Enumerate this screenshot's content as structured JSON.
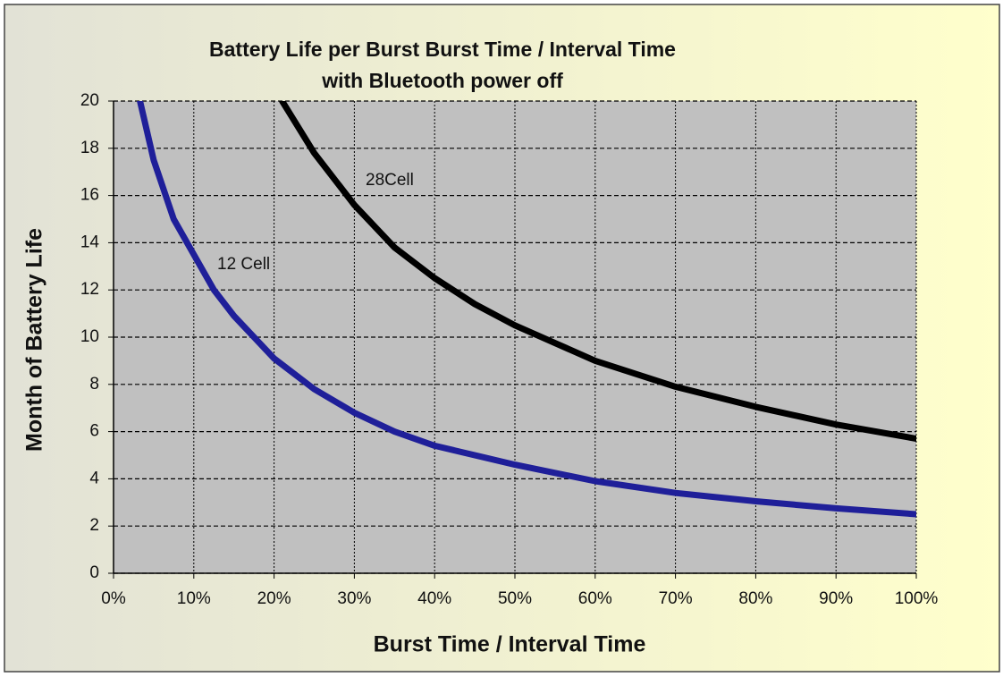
{
  "chart_data": {
    "type": "line",
    "title": "Battery Life per Burst Burst Time / Interval Time",
    "subtitle": "with Bluetooth  power off",
    "x_label": "Burst Time / Interval  Time",
    "y_label": "Month of Battery Life",
    "xlim": [
      0,
      100
    ],
    "xticks": [
      {
        "value": 0,
        "label": "0%"
      },
      {
        "value": 10,
        "label": "10%"
      },
      {
        "value": 20,
        "label": "20%"
      },
      {
        "value": 30,
        "label": "30%"
      },
      {
        "value": 40,
        "label": "40%"
      },
      {
        "value": 50,
        "label": "50%"
      },
      {
        "value": 60,
        "label": "60%"
      },
      {
        "value": 70,
        "label": "70%"
      },
      {
        "value": 80,
        "label": "80%"
      },
      {
        "value": 90,
        "label": "90%"
      },
      {
        "value": 100,
        "label": "100%"
      }
    ],
    "ylim": [
      0,
      20
    ],
    "yticks": [
      0,
      2,
      4,
      6,
      8,
      10,
      12,
      14,
      16,
      18,
      20
    ],
    "grid": true,
    "series": [
      {
        "name": "12 Cell",
        "color": "#1f1f99",
        "x": [
          3.3,
          5,
          7.5,
          10,
          12.5,
          15,
          20,
          25,
          30,
          35,
          40,
          50,
          60,
          70,
          80,
          90,
          100
        ],
        "values": [
          20,
          17.5,
          15,
          13.5,
          12,
          10.9,
          9.1,
          7.8,
          6.8,
          6.0,
          5.4,
          4.6,
          3.9,
          3.4,
          3.05,
          2.75,
          2.5
        ]
      },
      {
        "name": "28Cell",
        "color": "#000000",
        "x": [
          21,
          25,
          30,
          35,
          40,
          45,
          50,
          60,
          70,
          80,
          90,
          100
        ],
        "values": [
          20,
          17.8,
          15.6,
          13.8,
          12.5,
          11.4,
          10.5,
          9.0,
          7.9,
          7.05,
          6.3,
          5.7
        ]
      }
    ]
  }
}
